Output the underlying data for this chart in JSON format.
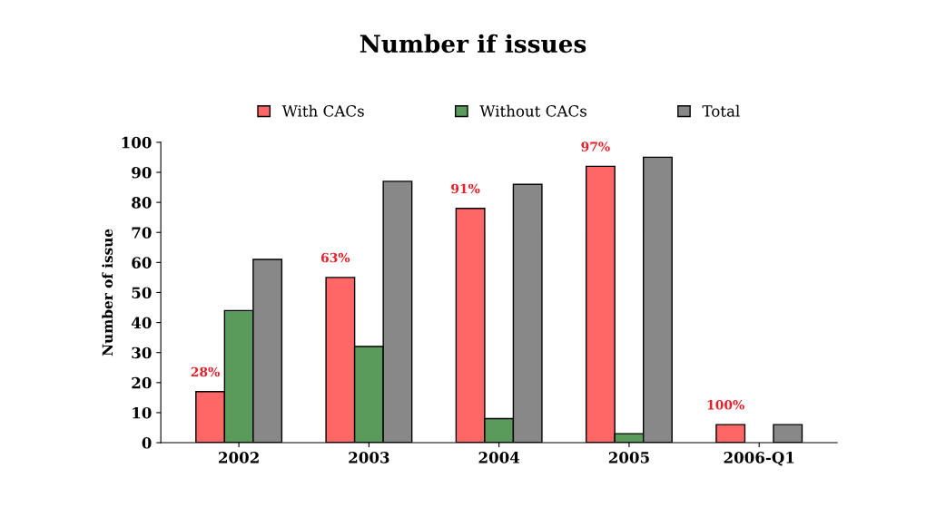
{
  "chart_data": {
    "type": "bar",
    "title": "Number if issues",
    "ylabel": "Number of issue",
    "categories": [
      "2002",
      "2003",
      "2004",
      "2005",
      "2006-Q1"
    ],
    "series": [
      {
        "name": "With CACs",
        "color": "#ff6666",
        "values": [
          17,
          55,
          78,
          92,
          6
        ]
      },
      {
        "name": "Without CACs",
        "color": "#5a9a5a",
        "values": [
          44,
          32,
          8,
          3,
          null
        ]
      },
      {
        "name": "Total",
        "color": "#888888",
        "values": [
          61,
          87,
          86,
          95,
          6
        ]
      }
    ],
    "annotations": [
      "28%",
      "63%",
      "91%",
      "97%",
      "100%"
    ],
    "ylim": [
      0,
      100
    ],
    "yticks": [
      0,
      10,
      20,
      30,
      40,
      50,
      60,
      70,
      80,
      90,
      100
    ],
    "grid": false,
    "legend": "top"
  }
}
